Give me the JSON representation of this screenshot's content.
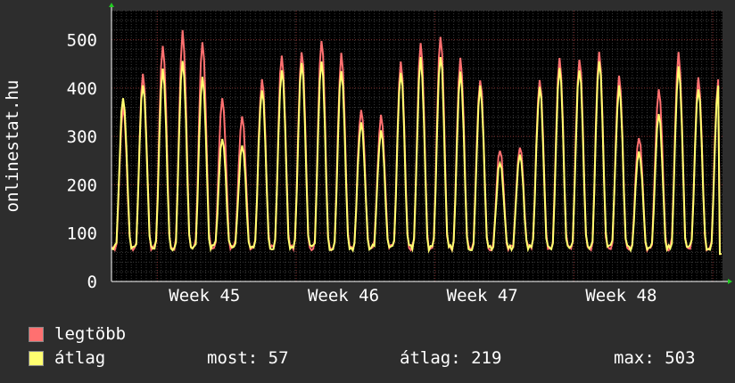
{
  "colors": {
    "background": "#2d2d2d",
    "plot_bg": "#000000",
    "max_series": "#ff7070",
    "avg_series": "#ffff70",
    "axis": "#ffffff"
  },
  "chart_data": {
    "type": "line",
    "ylabel": "onlinestat.hu",
    "ylim": [
      0,
      560
    ],
    "yticks": [
      0,
      100,
      200,
      300,
      400,
      500
    ],
    "xlim": [
      0,
      4.4
    ],
    "x_axis_labels": [
      {
        "x": 0.67,
        "label": "Week 45"
      },
      {
        "x": 1.67,
        "label": "Week 46"
      },
      {
        "x": 2.67,
        "label": "Week 47"
      },
      {
        "x": 3.67,
        "label": "Week 48"
      }
    ],
    "daily_avg_peaks": [
      380,
      410,
      440,
      460,
      420,
      300,
      280,
      400,
      440,
      450,
      460,
      440,
      330,
      310,
      430,
      460,
      470,
      430,
      400,
      250,
      260,
      400,
      440,
      440,
      460,
      400,
      270,
      350,
      440,
      400
    ],
    "daily_max_peaks": [
      360,
      430,
      490,
      515,
      500,
      380,
      340,
      420,
      470,
      480,
      500,
      470,
      360,
      340,
      450,
      490,
      510,
      460,
      420,
      275,
      280,
      420,
      460,
      460,
      470,
      420,
      300,
      400,
      470,
      420
    ],
    "daily_min": 70,
    "end_value": 57,
    "series": [
      {
        "name": "legtöbb",
        "color": "#ff7070"
      },
      {
        "name": "átlag",
        "color": "#ffff70"
      }
    ]
  },
  "legend": {
    "max_label": "legtöbb",
    "avg_label": "átlag",
    "most": "most: 57",
    "atlag": "átlag: 219",
    "max": "max: 503"
  }
}
